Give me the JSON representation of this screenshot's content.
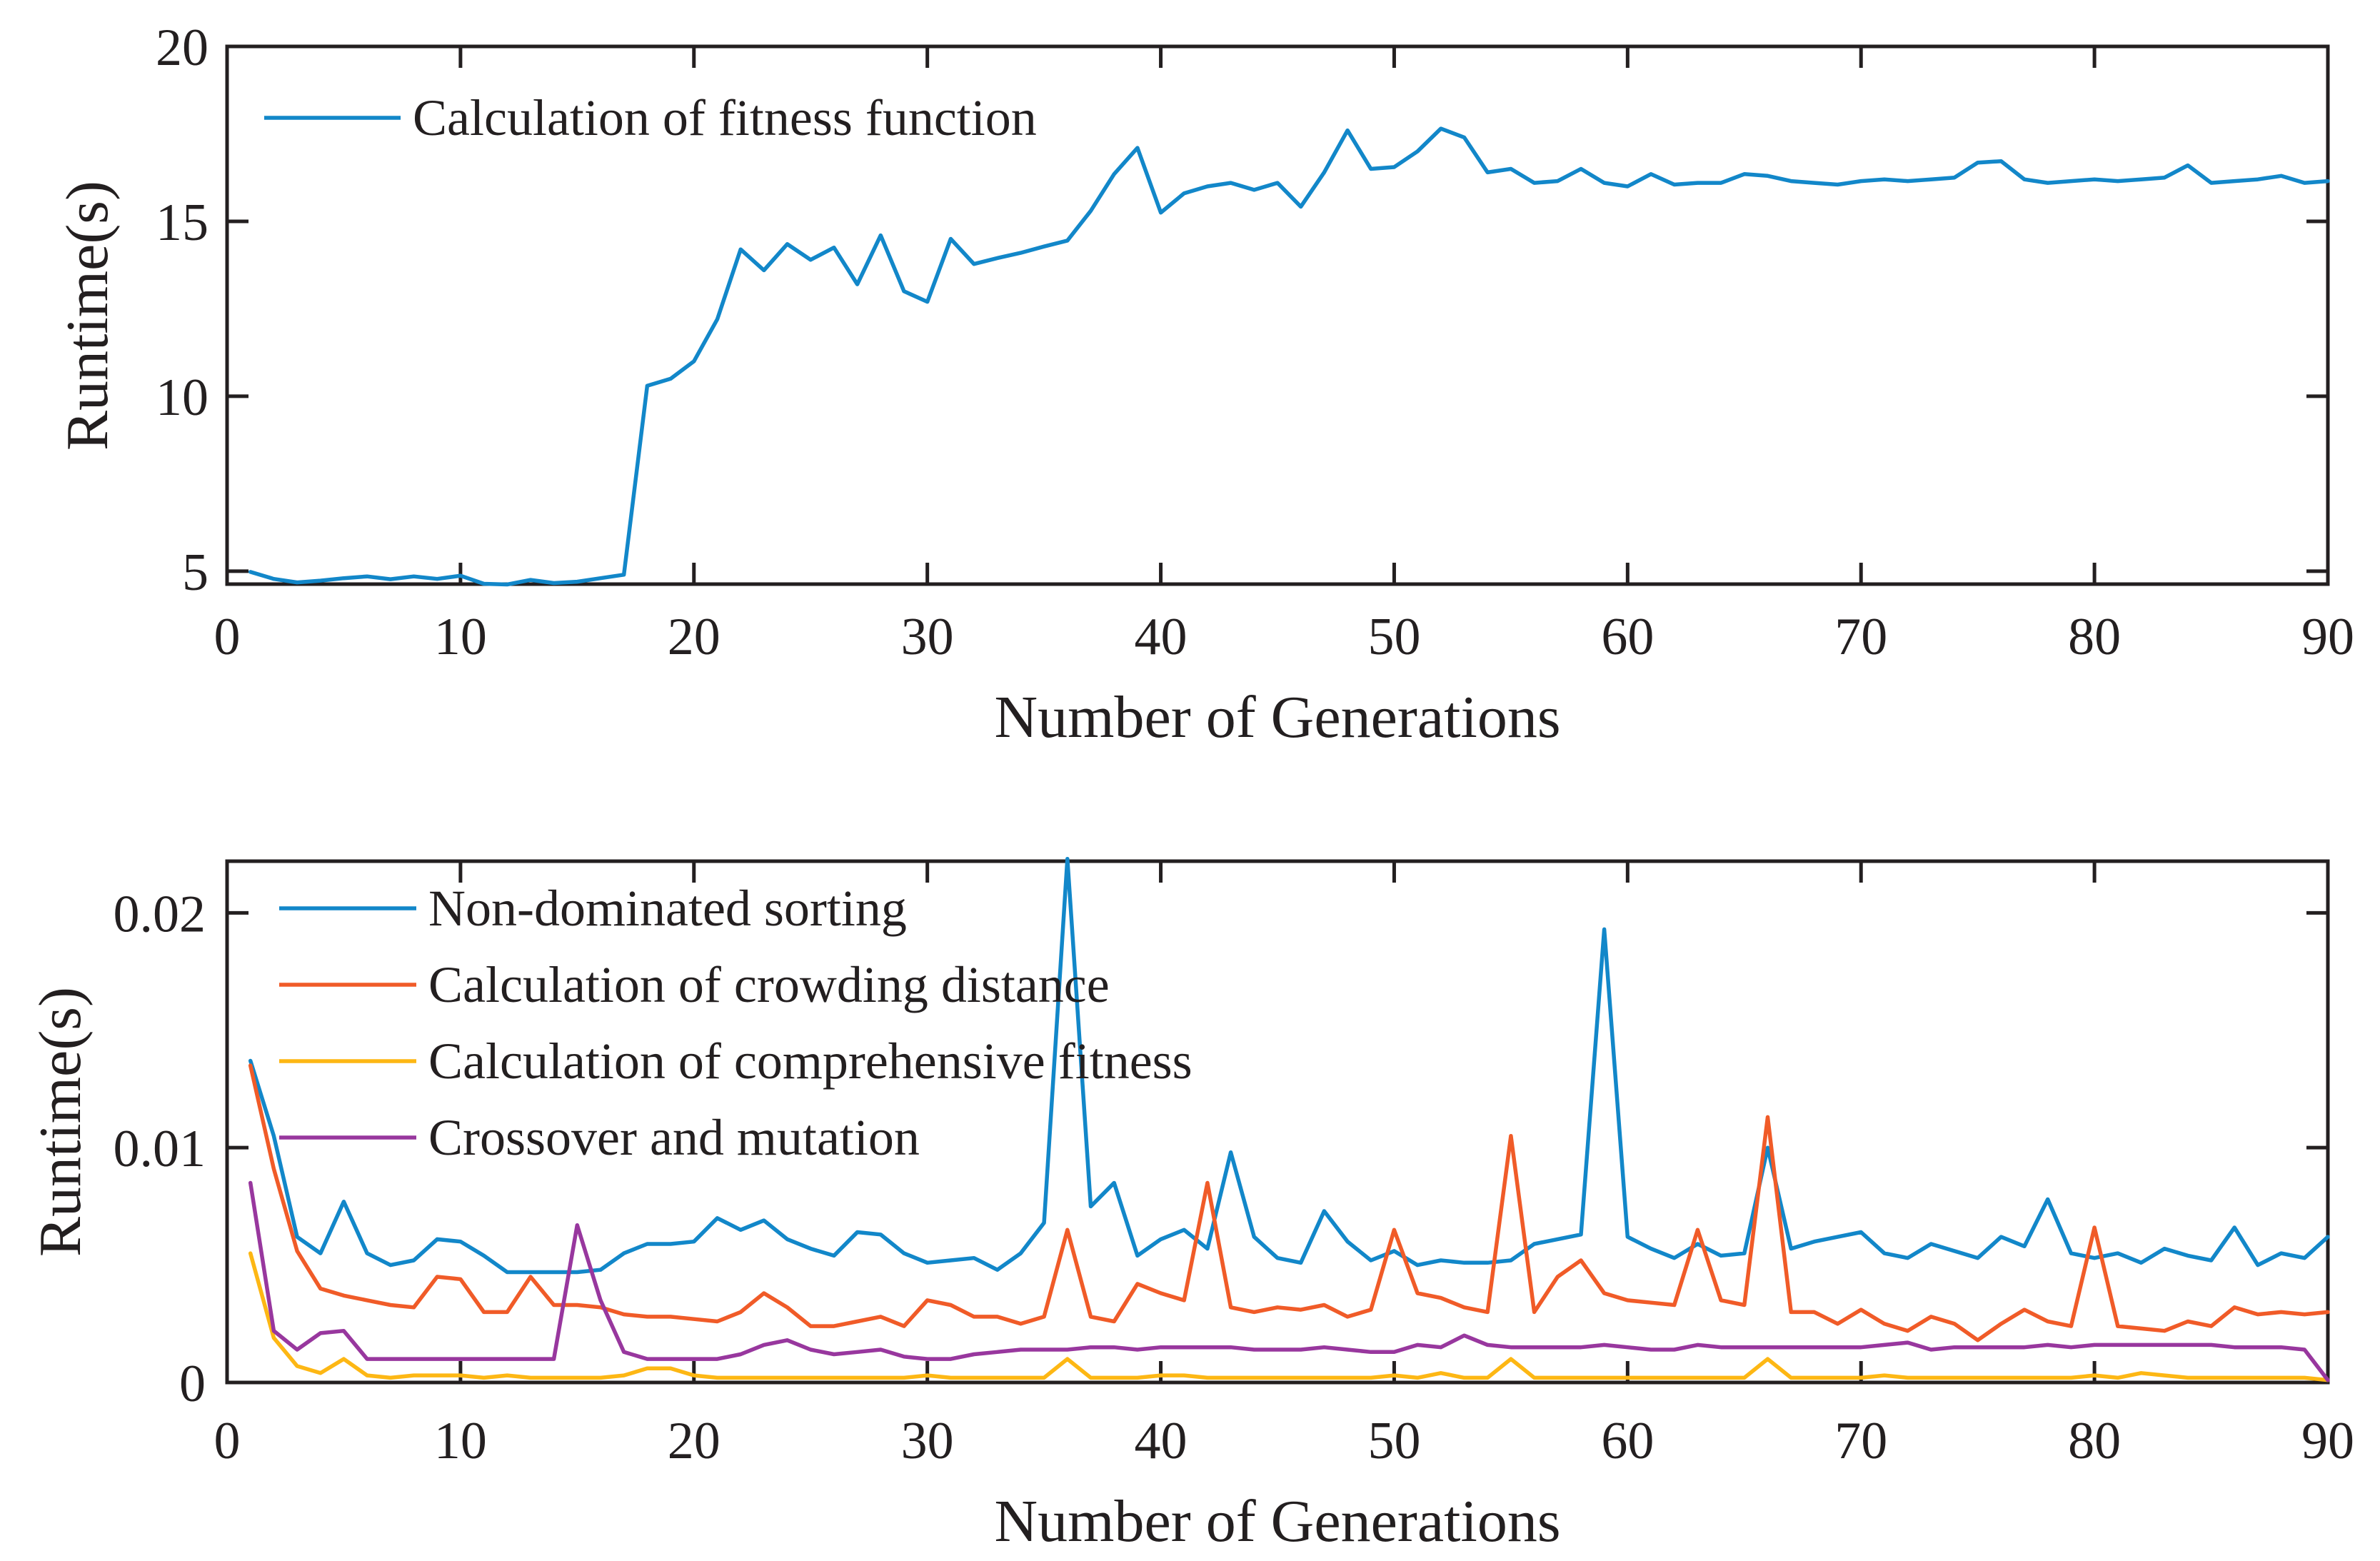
{
  "figure": {
    "background_color": "#ffffff",
    "text_color": "#231f20",
    "axis_color": "#231f20"
  },
  "chart_data": [
    {
      "type": "line",
      "title": "",
      "xlabel": "Number of Generations",
      "ylabel": "Runtime(s)",
      "xlim": [
        0,
        90
      ],
      "ylim": [
        4.63,
        20
      ],
      "xticks": [
        0,
        10,
        20,
        30,
        40,
        50,
        60,
        70,
        80,
        90
      ],
      "yticks": [
        5,
        10,
        15,
        20
      ],
      "ytick_labels": [
        "5",
        "10",
        "15",
        "20"
      ],
      "grid": false,
      "legend_position": "upper-left-inside",
      "legend_frame": false,
      "x": [
        1,
        2,
        3,
        4,
        5,
        6,
        7,
        8,
        9,
        10,
        11,
        12,
        13,
        14,
        15,
        16,
        17,
        18,
        19,
        20,
        21,
        22,
        23,
        24,
        25,
        26,
        27,
        28,
        29,
        30,
        31,
        32,
        33,
        34,
        35,
        36,
        37,
        38,
        39,
        40,
        41,
        42,
        43,
        44,
        45,
        46,
        47,
        48,
        49,
        50,
        51,
        52,
        53,
        54,
        55,
        56,
        57,
        58,
        59,
        60,
        61,
        62,
        63,
        64,
        65,
        66,
        67,
        68,
        69,
        70,
        71,
        72,
        73,
        74,
        75,
        76,
        77,
        78,
        79,
        80,
        81,
        82,
        83,
        84,
        85,
        86,
        87,
        88,
        89,
        90
      ],
      "series": [
        {
          "name": "Calculation of fitness function",
          "color": "#1287c9",
          "values": [
            4.98,
            4.78,
            4.68,
            4.73,
            4.8,
            4.85,
            4.77,
            4.85,
            4.78,
            4.87,
            4.64,
            4.62,
            4.75,
            4.66,
            4.7,
            4.8,
            4.9,
            10.3,
            10.5,
            11.0,
            12.2,
            14.2,
            13.6,
            14.35,
            13.9,
            14.25,
            13.2,
            14.6,
            13.0,
            12.7,
            14.5,
            13.78,
            13.95,
            14.1,
            14.28,
            14.45,
            15.3,
            16.35,
            17.1,
            15.25,
            15.8,
            16.0,
            16.1,
            15.9,
            16.1,
            15.42,
            16.4,
            17.6,
            16.5,
            16.55,
            17.0,
            17.65,
            17.4,
            16.4,
            16.5,
            16.1,
            16.15,
            16.5,
            16.1,
            16.0,
            16.35,
            16.05,
            16.1,
            16.1,
            16.35,
            16.3,
            16.15,
            16.1,
            16.05,
            16.15,
            16.2,
            16.15,
            16.2,
            16.25,
            16.68,
            16.72,
            16.2,
            16.1,
            16.15,
            16.2,
            16.15,
            16.2,
            16.25,
            16.6,
            16.1,
            16.15,
            16.2,
            16.3,
            16.1,
            16.15
          ]
        }
      ]
    },
    {
      "type": "line",
      "title": "",
      "xlabel": "Number of Generations",
      "ylabel": "Runtime(s)",
      "xlim": [
        0,
        90
      ],
      "ylim": [
        0,
        0.0222
      ],
      "xticks": [
        0,
        10,
        20,
        30,
        40,
        50,
        60,
        70,
        80,
        90
      ],
      "yticks": [
        0,
        0.01,
        0.02
      ],
      "ytick_labels": [
        "0",
        "0.01",
        "0.02"
      ],
      "grid": false,
      "legend_position": "upper-left-inside",
      "legend_frame": false,
      "x": [
        1,
        2,
        3,
        4,
        5,
        6,
        7,
        8,
        9,
        10,
        11,
        12,
        13,
        14,
        15,
        16,
        17,
        18,
        19,
        20,
        21,
        22,
        23,
        24,
        25,
        26,
        27,
        28,
        29,
        30,
        31,
        32,
        33,
        34,
        35,
        36,
        37,
        38,
        39,
        40,
        41,
        42,
        43,
        44,
        45,
        46,
        47,
        48,
        49,
        50,
        51,
        52,
        53,
        54,
        55,
        56,
        57,
        58,
        59,
        60,
        61,
        62,
        63,
        64,
        65,
        66,
        67,
        68,
        69,
        70,
        71,
        72,
        73,
        74,
        75,
        76,
        77,
        78,
        79,
        80,
        81,
        82,
        83,
        84,
        85,
        86,
        87,
        88,
        89,
        90
      ],
      "series": [
        {
          "name": "Non-dominated sorting",
          "color": "#1287c9",
          "values": [
            0.0137,
            0.0105,
            0.0062,
            0.0055,
            0.0077,
            0.0055,
            0.005,
            0.0052,
            0.0061,
            0.006,
            0.0054,
            0.0047,
            0.0047,
            0.0047,
            0.0047,
            0.0048,
            0.0055,
            0.0059,
            0.0059,
            0.006,
            0.007,
            0.0065,
            0.0069,
            0.0061,
            0.0057,
            0.0054,
            0.0064,
            0.0063,
            0.0055,
            0.0051,
            0.0052,
            0.0053,
            0.0048,
            0.0055,
            0.0068,
            0.0223,
            0.0075,
            0.0085,
            0.0054,
            0.0061,
            0.0065,
            0.0057,
            0.0098,
            0.0062,
            0.0053,
            0.0051,
            0.0073,
            0.006,
            0.0052,
            0.0056,
            0.005,
            0.0052,
            0.0051,
            0.0051,
            0.0052,
            0.0059,
            0.0061,
            0.0063,
            0.0193,
            0.0062,
            0.0057,
            0.0053,
            0.0059,
            0.0054,
            0.0055,
            0.01,
            0.0057,
            0.006,
            0.0062,
            0.0064,
            0.0055,
            0.0053,
            0.0059,
            0.0056,
            0.0053,
            0.0062,
            0.0058,
            0.0078,
            0.0055,
            0.0053,
            0.0055,
            0.0051,
            0.0057,
            0.0054,
            0.0052,
            0.0066,
            0.005,
            0.0055,
            0.0053,
            0.0062
          ]
        },
        {
          "name": "Calculation of crowding distance",
          "color": "#f05b28",
          "values": [
            0.0135,
            0.0091,
            0.0056,
            0.004,
            0.0037,
            0.0035,
            0.0033,
            0.0032,
            0.0045,
            0.0044,
            0.003,
            0.003,
            0.0045,
            0.0033,
            0.0033,
            0.0032,
            0.0029,
            0.0028,
            0.0028,
            0.0027,
            0.0026,
            0.003,
            0.0038,
            0.0032,
            0.0024,
            0.0024,
            0.0026,
            0.0028,
            0.0024,
            0.0035,
            0.0033,
            0.0028,
            0.0028,
            0.0025,
            0.0028,
            0.0065,
            0.0028,
            0.0026,
            0.0042,
            0.0038,
            0.0035,
            0.0085,
            0.0032,
            0.003,
            0.0032,
            0.0031,
            0.0033,
            0.0028,
            0.0031,
            0.0065,
            0.0038,
            0.0036,
            0.0032,
            0.003,
            0.0105,
            0.003,
            0.0045,
            0.0052,
            0.0038,
            0.0035,
            0.0034,
            0.0033,
            0.0065,
            0.0035,
            0.0033,
            0.0113,
            0.003,
            0.003,
            0.0025,
            0.0031,
            0.0025,
            0.0022,
            0.0028,
            0.0025,
            0.0018,
            0.0025,
            0.0031,
            0.0026,
            0.0024,
            0.0066,
            0.0024,
            0.0023,
            0.0022,
            0.0026,
            0.0024,
            0.0032,
            0.0029,
            0.003,
            0.0029,
            0.003
          ]
        },
        {
          "name": "Calculation of comprehensive fitness",
          "color": "#fdb714",
          "values": [
            0.0055,
            0.0019,
            0.0007,
            0.0004,
            0.001,
            0.0003,
            0.0002,
            0.0003,
            0.0003,
            0.0003,
            0.0002,
            0.0003,
            0.0002,
            0.0002,
            0.0002,
            0.0002,
            0.0003,
            0.0006,
            0.0006,
            0.0003,
            0.0002,
            0.0002,
            0.0002,
            0.0002,
            0.0002,
            0.0002,
            0.0002,
            0.0002,
            0.0002,
            0.0003,
            0.0002,
            0.0002,
            0.0002,
            0.0002,
            0.0002,
            0.001,
            0.0002,
            0.0002,
            0.0002,
            0.0003,
            0.0003,
            0.0002,
            0.0002,
            0.0002,
            0.0002,
            0.0002,
            0.0002,
            0.0002,
            0.0002,
            0.0003,
            0.0002,
            0.0004,
            0.0002,
            0.0002,
            0.001,
            0.0002,
            0.0002,
            0.0002,
            0.0002,
            0.0002,
            0.0002,
            0.0002,
            0.0002,
            0.0002,
            0.0002,
            0.001,
            0.0002,
            0.0002,
            0.0002,
            0.0002,
            0.0003,
            0.0002,
            0.0002,
            0.0002,
            0.0002,
            0.0002,
            0.0002,
            0.0002,
            0.0002,
            0.0003,
            0.0002,
            0.0004,
            0.0003,
            0.0002,
            0.0002,
            0.0002,
            0.0002,
            0.0002,
            0.0002,
            0.0001
          ]
        },
        {
          "name": "Crossover and mutation",
          "color": "#98379e",
          "values": [
            0.0085,
            0.0022,
            0.0014,
            0.0021,
            0.0022,
            0.001,
            0.001,
            0.001,
            0.001,
            0.001,
            0.001,
            0.001,
            0.001,
            0.001,
            0.0067,
            0.0035,
            0.0013,
            0.001,
            0.001,
            0.001,
            0.001,
            0.0012,
            0.0016,
            0.0018,
            0.0014,
            0.0012,
            0.0013,
            0.0014,
            0.0011,
            0.001,
            0.001,
            0.0012,
            0.0013,
            0.0014,
            0.0014,
            0.0014,
            0.0015,
            0.0015,
            0.0014,
            0.0015,
            0.0015,
            0.0015,
            0.0015,
            0.0014,
            0.0014,
            0.0014,
            0.0015,
            0.0014,
            0.0013,
            0.0013,
            0.0016,
            0.0015,
            0.002,
            0.0016,
            0.0015,
            0.0015,
            0.0015,
            0.0015,
            0.0016,
            0.0015,
            0.0014,
            0.0014,
            0.0016,
            0.0015,
            0.0015,
            0.0015,
            0.0015,
            0.0015,
            0.0015,
            0.0015,
            0.0016,
            0.0017,
            0.0014,
            0.0015,
            0.0015,
            0.0015,
            0.0015,
            0.0016,
            0.0015,
            0.0016,
            0.0016,
            0.0016,
            0.0016,
            0.0016,
            0.0016,
            0.0015,
            0.0015,
            0.0015,
            0.0014,
            0.0001
          ]
        }
      ]
    }
  ]
}
